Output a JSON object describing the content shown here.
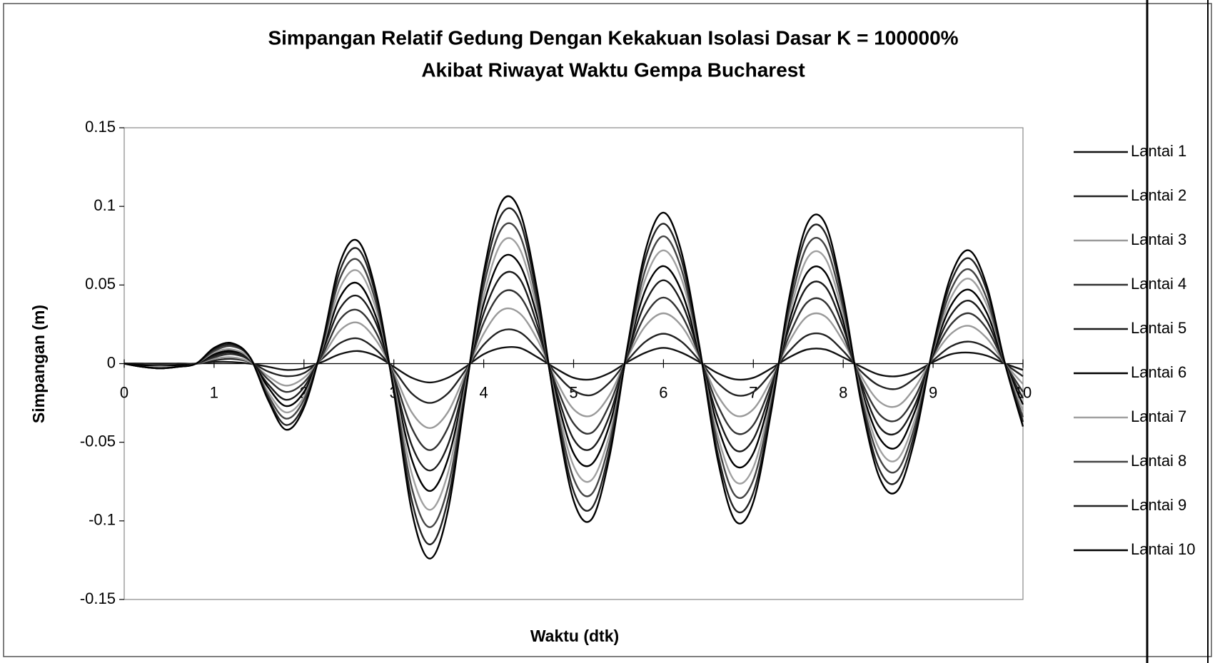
{
  "chart_data": {
    "type": "line",
    "title": "Simpangan Relatif Gedung Dengan Kekakuan Isolasi Dasar K = 100000%",
    "subtitle": "Akibat Riwayat Waktu Gempa Bucharest",
    "xlabel": "Waktu (dtk)",
    "ylabel": "Simpangan (m)",
    "xlim": [
      0,
      10
    ],
    "xticks": [
      0,
      1,
      2,
      3,
      4,
      5,
      6,
      7,
      8,
      9,
      10
    ],
    "ylim": [
      -0.15,
      0.15
    ],
    "yticks": [
      -0.15,
      -0.1,
      -0.05,
      0,
      0.05,
      0.1,
      0.15
    ],
    "grid": false,
    "legend": "right",
    "x": [
      0,
      0.2,
      0.4,
      0.6,
      0.8,
      1,
      1.2,
      1.4,
      1.6,
      1.8,
      2,
      2.2,
      2.4,
      2.6,
      2.8,
      3,
      3.2,
      3.4,
      3.6,
      3.8,
      4,
      4.2,
      4.4,
      4.6,
      4.8,
      5,
      5.2,
      5.4,
      5.6,
      5.8,
      6,
      6.2,
      6.4,
      6.6,
      6.8,
      7,
      7.2,
      7.4,
      7.6,
      7.8,
      8,
      8.2,
      8.4,
      8.6,
      8.8,
      9,
      9.2,
      9.4,
      9.6,
      9.8,
      10
    ],
    "series": [
      {
        "name": "Lantai 1",
        "color": "#111111",
        "values": [
          0,
          0,
          0,
          0,
          0,
          0.001,
          0.001,
          0,
          -0.002,
          -0.004,
          -0.003,
          0.001,
          0.006,
          0.008,
          0.005,
          -0.002,
          -0.009,
          -0.012,
          -0.009,
          -0.002,
          0.006,
          0.01,
          0.01,
          0.004,
          -0.003,
          -0.009,
          -0.01,
          -0.006,
          0.001,
          0.007,
          0.01,
          0.007,
          0.001,
          -0.006,
          -0.01,
          -0.009,
          -0.003,
          0.004,
          0.009,
          0.009,
          0.004,
          -0.002,
          -0.007,
          -0.008,
          -0.005,
          0.001,
          0.006,
          0.007,
          0.005,
          0,
          -0.004
        ]
      },
      {
        "name": "Lantai 2",
        "color": "#222222",
        "values": [
          0,
          0,
          -0.001,
          0,
          0,
          0.002,
          0.003,
          0.001,
          -0.005,
          -0.008,
          -0.006,
          0.003,
          0.013,
          0.016,
          0.009,
          -0.004,
          -0.019,
          -0.025,
          -0.019,
          -0.004,
          0.012,
          0.021,
          0.02,
          0.009,
          -0.006,
          -0.017,
          -0.02,
          -0.012,
          0.002,
          0.014,
          0.019,
          0.014,
          0.002,
          -0.012,
          -0.02,
          -0.018,
          -0.006,
          0.008,
          0.018,
          0.018,
          0.008,
          -0.005,
          -0.014,
          -0.016,
          -0.009,
          0.002,
          0.011,
          0.014,
          0.01,
          0,
          -0.008
        ]
      },
      {
        "name": "Lantai 3",
        "color": "#9a9a9a",
        "values": [
          0,
          -0.001,
          -0.001,
          -0.001,
          0,
          0.003,
          0.004,
          0.001,
          -0.008,
          -0.014,
          -0.009,
          0.004,
          0.021,
          0.026,
          0.015,
          -0.006,
          -0.031,
          -0.041,
          -0.031,
          -0.006,
          0.019,
          0.034,
          0.032,
          0.015,
          -0.01,
          -0.029,
          -0.033,
          -0.02,
          0.004,
          0.024,
          0.032,
          0.024,
          0.004,
          -0.02,
          -0.033,
          -0.029,
          -0.01,
          0.014,
          0.03,
          0.03,
          0.014,
          -0.008,
          -0.024,
          -0.027,
          -0.015,
          0.004,
          0.019,
          0.024,
          0.016,
          0,
          -0.013
        ]
      },
      {
        "name": "Lantai 4",
        "color": "#333333",
        "values": [
          0,
          -0.001,
          -0.001,
          -0.001,
          0,
          0.004,
          0.006,
          0.002,
          -0.01,
          -0.018,
          -0.012,
          0.005,
          0.028,
          0.034,
          0.02,
          -0.008,
          -0.041,
          -0.055,
          -0.041,
          -0.008,
          0.026,
          0.045,
          0.043,
          0.02,
          -0.013,
          -0.038,
          -0.044,
          -0.026,
          0.005,
          0.031,
          0.042,
          0.031,
          0.005,
          -0.026,
          -0.044,
          -0.039,
          -0.013,
          0.018,
          0.039,
          0.039,
          0.018,
          -0.011,
          -0.032,
          -0.036,
          -0.021,
          0.005,
          0.025,
          0.032,
          0.022,
          0,
          -0.018
        ]
      },
      {
        "name": "Lantai 5",
        "color": "#1a1a1a",
        "values": [
          0,
          -0.001,
          -0.002,
          -0.001,
          0,
          0.005,
          0.007,
          0.002,
          -0.013,
          -0.023,
          -0.015,
          0.007,
          0.035,
          0.043,
          0.026,
          -0.01,
          -0.052,
          -0.068,
          -0.052,
          -0.01,
          0.032,
          0.056,
          0.054,
          0.024,
          -0.016,
          -0.048,
          -0.054,
          -0.033,
          0.006,
          0.039,
          0.053,
          0.039,
          0.006,
          -0.033,
          -0.055,
          -0.048,
          -0.016,
          0.023,
          0.049,
          0.049,
          0.023,
          -0.013,
          -0.04,
          -0.044,
          -0.026,
          0.006,
          0.031,
          0.04,
          0.027,
          0,
          -0.022
        ]
      },
      {
        "name": "Lantai 6",
        "color": "#000000",
        "values": [
          0,
          -0.001,
          -0.002,
          -0.001,
          0,
          0.006,
          0.008,
          0.003,
          -0.015,
          -0.027,
          -0.018,
          0.008,
          0.042,
          0.051,
          0.03,
          -0.012,
          -0.061,
          -0.081,
          -0.061,
          -0.012,
          0.038,
          0.067,
          0.063,
          0.029,
          -0.019,
          -0.057,
          -0.064,
          -0.039,
          0.007,
          0.047,
          0.062,
          0.046,
          0.007,
          -0.039,
          -0.065,
          -0.057,
          -0.019,
          0.027,
          0.058,
          0.058,
          0.027,
          -0.016,
          -0.047,
          -0.053,
          -0.03,
          0.007,
          0.037,
          0.047,
          0.032,
          0,
          -0.026
        ]
      },
      {
        "name": "Lantai 7",
        "color": "#a0a0a0",
        "values": [
          0,
          -0.002,
          -0.002,
          -0.002,
          0,
          0.007,
          0.009,
          0.003,
          -0.018,
          -0.031,
          -0.021,
          0.009,
          0.048,
          0.059,
          0.035,
          -0.013,
          -0.07,
          -0.093,
          -0.07,
          -0.013,
          0.043,
          0.077,
          0.073,
          0.033,
          -0.022,
          -0.065,
          -0.074,
          -0.045,
          0.008,
          0.054,
          0.072,
          0.054,
          0.008,
          -0.045,
          -0.075,
          -0.066,
          -0.022,
          0.031,
          0.067,
          0.067,
          0.031,
          -0.018,
          -0.054,
          -0.061,
          -0.035,
          0.008,
          0.042,
          0.054,
          0.037,
          0,
          -0.03
        ]
      },
      {
        "name": "Lantai 8",
        "color": "#444444",
        "values": [
          0,
          -0.002,
          -0.003,
          -0.002,
          0,
          0.008,
          0.011,
          0.004,
          -0.02,
          -0.035,
          -0.023,
          0.01,
          0.054,
          0.066,
          0.039,
          -0.015,
          -0.079,
          -0.104,
          -0.079,
          -0.015,
          0.049,
          0.086,
          0.082,
          0.037,
          -0.025,
          -0.073,
          -0.083,
          -0.05,
          0.009,
          0.06,
          0.081,
          0.06,
          0.009,
          -0.05,
          -0.084,
          -0.074,
          -0.025,
          0.035,
          0.075,
          0.075,
          0.035,
          -0.021,
          -0.06,
          -0.068,
          -0.039,
          0.009,
          0.047,
          0.06,
          0.041,
          0,
          -0.034
        ]
      },
      {
        "name": "Lantai 9",
        "color": "#222222",
        "values": [
          0,
          -0.002,
          -0.003,
          -0.002,
          0,
          0.009,
          0.012,
          0.004,
          -0.022,
          -0.039,
          -0.026,
          0.011,
          0.059,
          0.073,
          0.043,
          -0.017,
          -0.087,
          -0.115,
          -0.087,
          -0.017,
          0.054,
          0.095,
          0.091,
          0.041,
          -0.027,
          -0.081,
          -0.092,
          -0.055,
          0.01,
          0.067,
          0.089,
          0.066,
          0.01,
          -0.056,
          -0.093,
          -0.082,
          -0.028,
          0.039,
          0.083,
          0.083,
          0.039,
          -0.023,
          -0.067,
          -0.075,
          -0.043,
          0.01,
          0.052,
          0.067,
          0.046,
          0,
          -0.037
        ]
      },
      {
        "name": "Lantai 10",
        "color": "#000000",
        "values": [
          0,
          -0.002,
          -0.003,
          -0.002,
          0,
          0.01,
          0.013,
          0.004,
          -0.023,
          -0.042,
          -0.028,
          0.012,
          0.064,
          0.078,
          0.046,
          -0.018,
          -0.094,
          -0.124,
          -0.094,
          -0.018,
          0.058,
          0.103,
          0.097,
          0.045,
          -0.029,
          -0.087,
          -0.099,
          -0.059,
          0.011,
          0.072,
          0.096,
          0.071,
          0.011,
          -0.06,
          -0.1,
          -0.088,
          -0.03,
          0.042,
          0.089,
          0.089,
          0.042,
          -0.025,
          -0.072,
          -0.081,
          -0.047,
          0.011,
          0.056,
          0.072,
          0.049,
          0,
          -0.04
        ]
      }
    ]
  }
}
